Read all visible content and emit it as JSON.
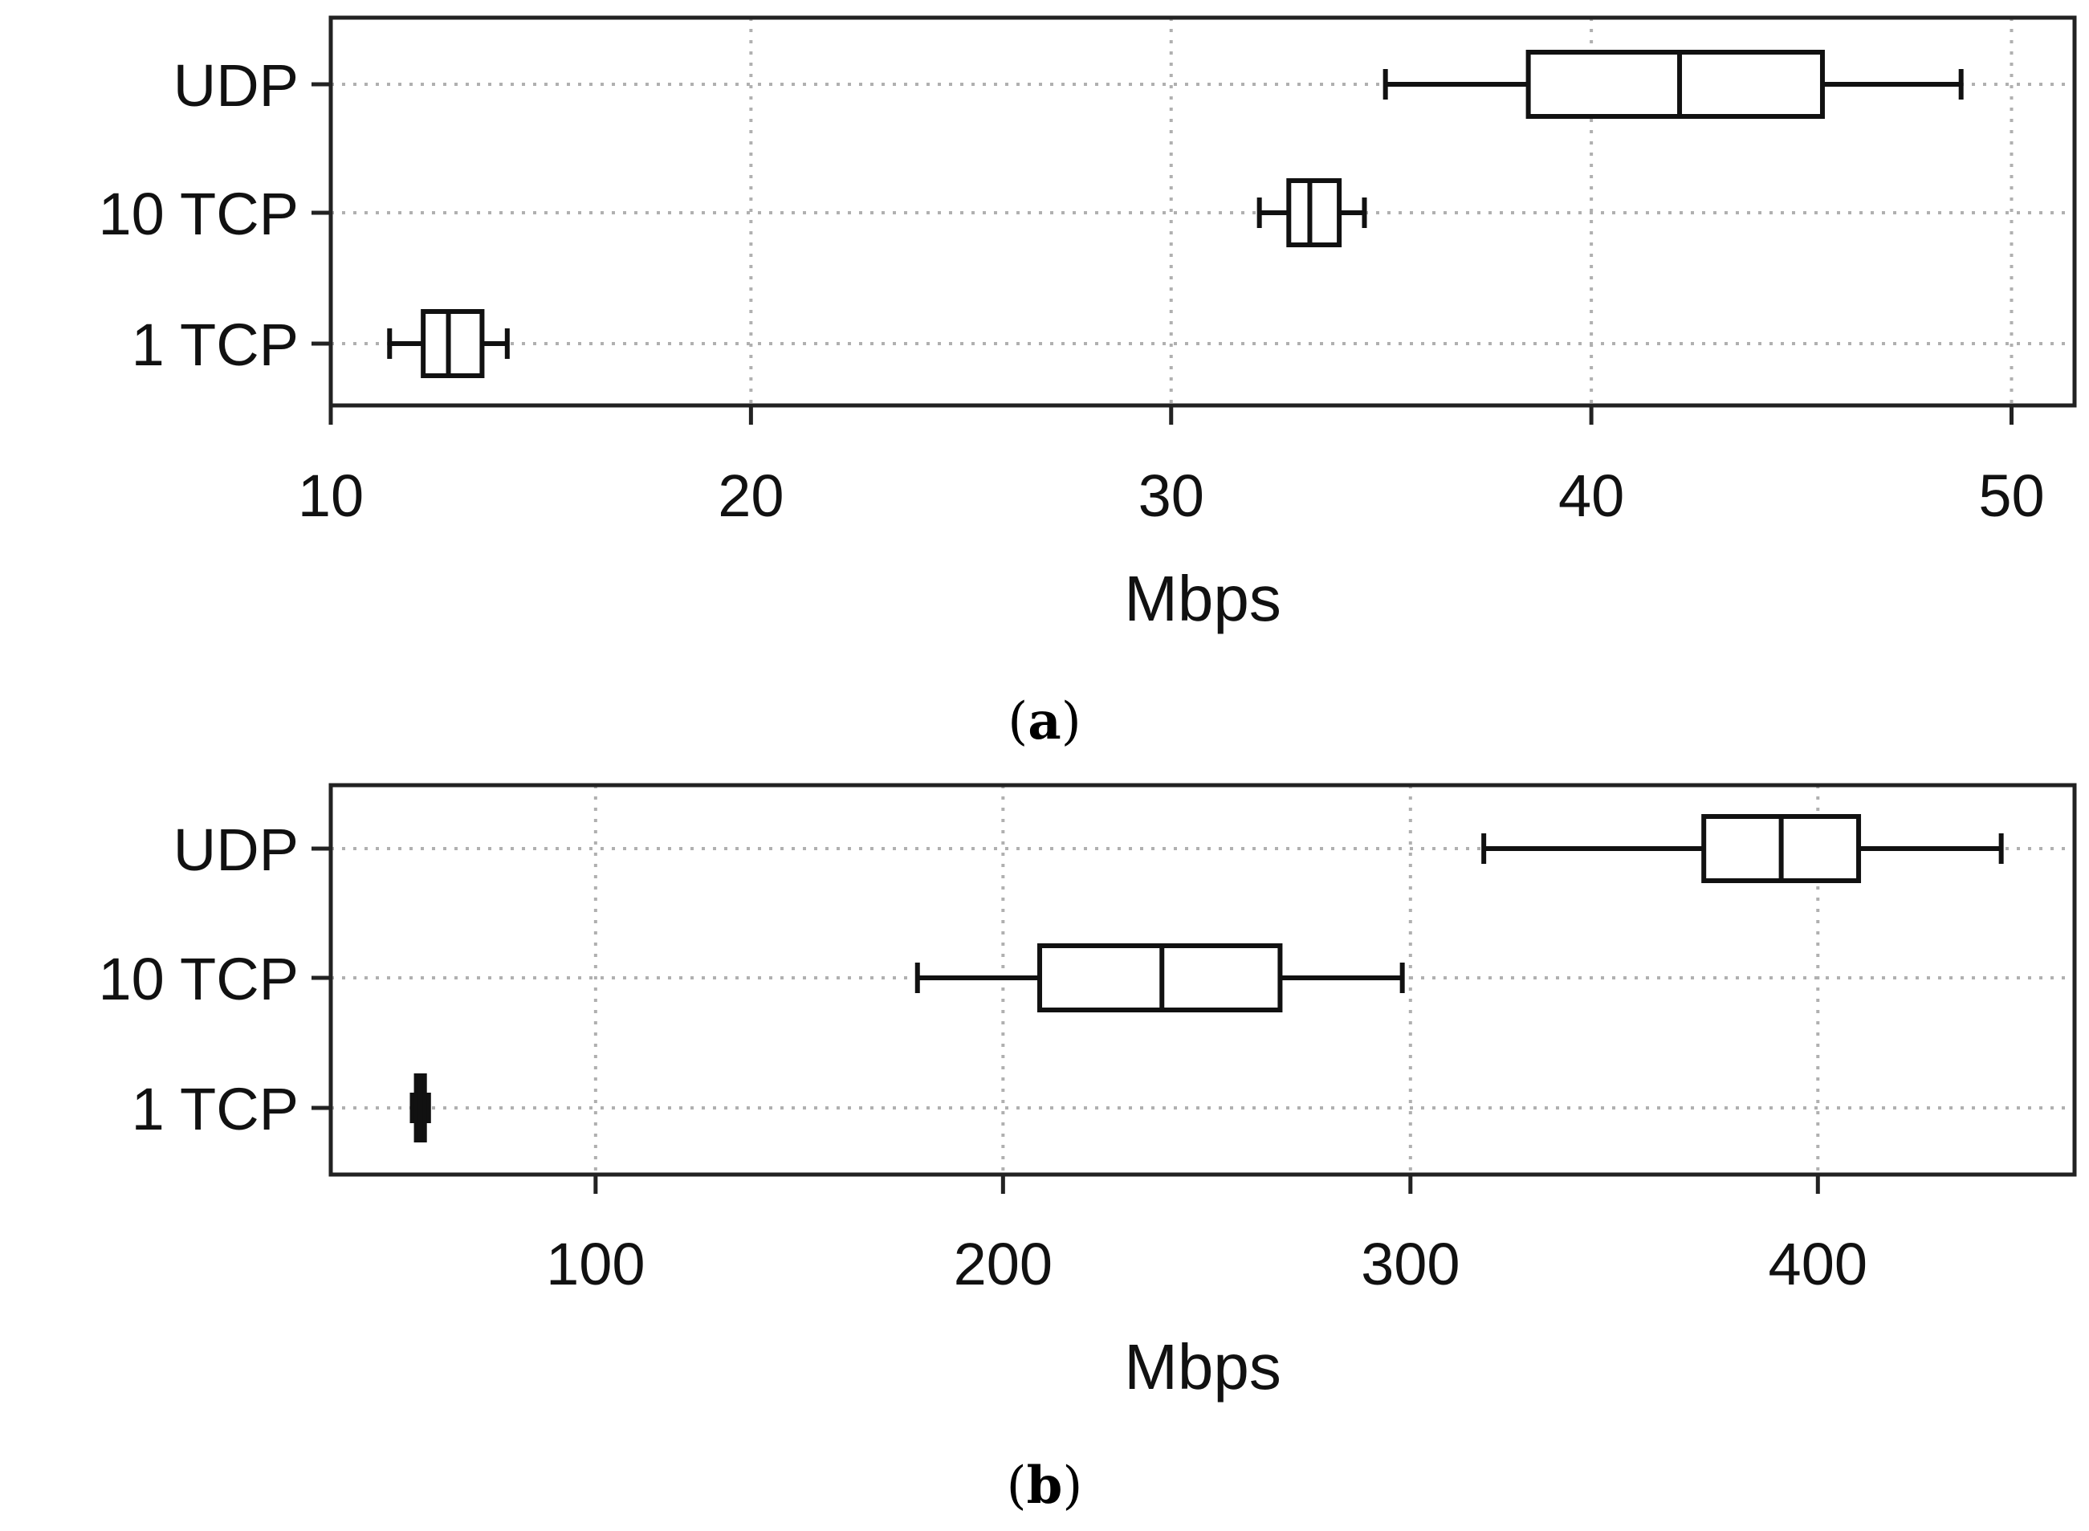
{
  "chart_data": [
    {
      "type": "boxplot",
      "orientation": "horizontal",
      "caption": {
        "open": "(",
        "letter": "a",
        "close": ")"
      },
      "xlabel": "Mbps",
      "xlim": [
        10,
        51.5
      ],
      "xticks": [
        10,
        20,
        30,
        40,
        50
      ],
      "grid": true,
      "categories": [
        "UDP",
        "10 TCP",
        "1 TCP"
      ],
      "boxes": [
        {
          "category": "UDP",
          "whisker_low": 35.1,
          "q1": 38.5,
          "median": 42.1,
          "q3": 45.5,
          "whisker_high": 48.8
        },
        {
          "category": "10 TCP",
          "whisker_low": 32.1,
          "q1": 32.8,
          "median": 33.3,
          "q3": 34.0,
          "whisker_high": 34.6
        },
        {
          "category": "1 TCP",
          "whisker_low": 11.4,
          "q1": 12.2,
          "median": 12.8,
          "q3": 13.6,
          "whisker_high": 14.2
        }
      ]
    },
    {
      "type": "boxplot",
      "orientation": "horizontal",
      "caption": {
        "open": "(",
        "letter": "b",
        "close": ")"
      },
      "xlabel": "Mbps",
      "xlim": [
        35,
        463
      ],
      "xticks": [
        100,
        200,
        300,
        400
      ],
      "grid": true,
      "categories": [
        "UDP",
        "10 TCP",
        "1 TCP"
      ],
      "boxes": [
        {
          "category": "UDP",
          "whisker_low": 318,
          "q1": 372,
          "median": 391,
          "q3": 410,
          "whisker_high": 445
        },
        {
          "category": "10 TCP",
          "whisker_low": 179,
          "q1": 209,
          "median": 239,
          "q3": 268,
          "whisker_high": 298
        },
        {
          "category": "1 TCP",
          "whisker_low": 55,
          "q1": 56,
          "median": 57,
          "q3": 58,
          "whisker_high": 59
        }
      ]
    }
  ]
}
